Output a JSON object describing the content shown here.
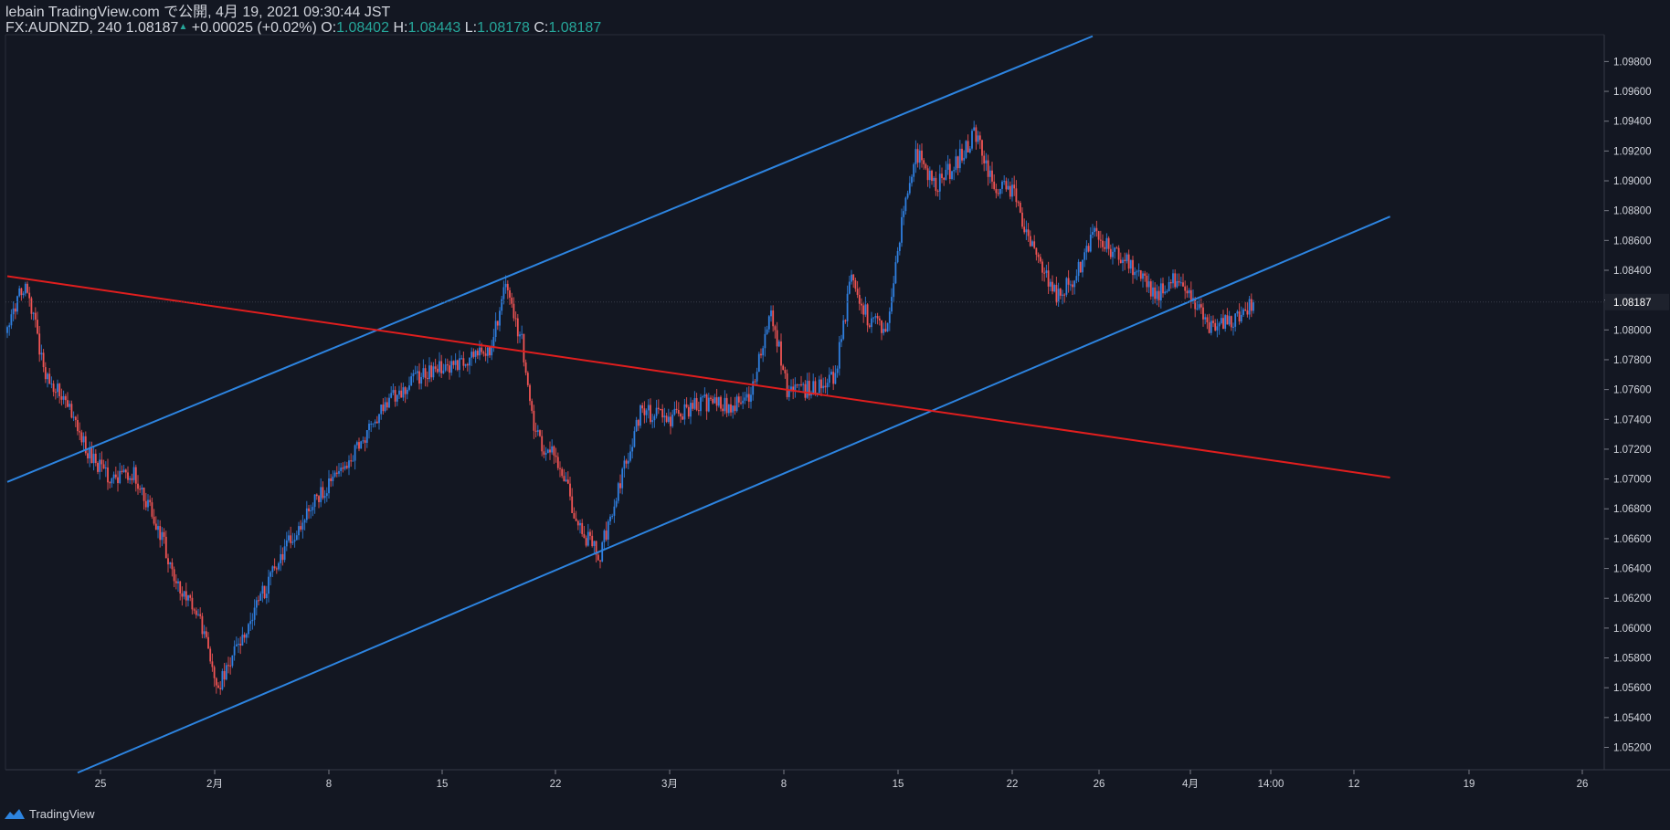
{
  "header": {
    "line1": "lebain TradingView.com で公開, 4月 19, 2021 09:30:44 JST",
    "symbol": "FX:AUDNZD, 240",
    "last": "1.08187",
    "up_arrow": "▲",
    "change": "+0.00025 (+0.02%)",
    "o_label": "O:",
    "o_value": "1.08402",
    "h_label": "H:",
    "h_value": "1.08443",
    "l_label": "L:",
    "l_value": "1.08178",
    "c_label": "C:",
    "c_value": "1.08187"
  },
  "footer": {
    "brand": "TradingView"
  },
  "colors": {
    "background": "#131722",
    "up": "#2f7fe0",
    "down": "#f05454",
    "channel": "#2d84e0",
    "trendline": "#e01e1e",
    "axis_text": "#d1d4dc",
    "price_tag_bg": "#1e222d"
  },
  "chart_data": {
    "type": "candlestick",
    "symbol": "FX:AUDNZD",
    "interval": "240",
    "ylim": [
      1.0505,
      1.0998
    ],
    "y_ticks": [
      "1.09800",
      "1.09600",
      "1.09400",
      "1.09200",
      "1.09000",
      "1.08800",
      "1.08600",
      "1.08400",
      "1.08200",
      "1.08000",
      "1.07800",
      "1.07600",
      "1.07400",
      "1.07200",
      "1.07000",
      "1.06800",
      "1.06600",
      "1.06400",
      "1.06200",
      "1.06000",
      "1.05800",
      "1.05600",
      "1.05400",
      "1.05200"
    ],
    "current_price": "1.08187",
    "x_ticks": [
      "25",
      "2月",
      "8",
      "15",
      "22",
      "3月",
      "8",
      "15",
      "22",
      "26",
      "4月",
      "14:00",
      "12",
      "19",
      "26"
    ],
    "close_path": [
      {
        "bar": 0,
        "close": 1.0803
      },
      {
        "bar": 6,
        "close": 1.0825
      },
      {
        "bar": 10,
        "close": 1.083
      },
      {
        "bar": 18,
        "close": 1.0772
      },
      {
        "bar": 30,
        "close": 1.0748
      },
      {
        "bar": 40,
        "close": 1.0718
      },
      {
        "bar": 52,
        "close": 1.0698
      },
      {
        "bar": 62,
        "close": 1.0705
      },
      {
        "bar": 72,
        "close": 1.0678
      },
      {
        "bar": 85,
        "close": 1.063
      },
      {
        "bar": 95,
        "close": 1.061
      },
      {
        "bar": 105,
        "close": 1.056
      },
      {
        "bar": 115,
        "close": 1.0588
      },
      {
        "bar": 130,
        "close": 1.0632
      },
      {
        "bar": 145,
        "close": 1.067
      },
      {
        "bar": 165,
        "close": 1.0705
      },
      {
        "bar": 175,
        "close": 1.0722
      },
      {
        "bar": 190,
        "close": 1.0755
      },
      {
        "bar": 210,
        "close": 1.0772
      },
      {
        "bar": 230,
        "close": 1.0782
      },
      {
        "bar": 240,
        "close": 1.0786
      },
      {
        "bar": 248,
        "close": 1.0828
      },
      {
        "bar": 256,
        "close": 1.0792
      },
      {
        "bar": 262,
        "close": 1.073
      },
      {
        "bar": 275,
        "close": 1.071
      },
      {
        "bar": 285,
        "close": 1.0665
      },
      {
        "bar": 295,
        "close": 1.065
      },
      {
        "bar": 305,
        "close": 1.0698
      },
      {
        "bar": 315,
        "close": 1.0745
      },
      {
        "bar": 330,
        "close": 1.074
      },
      {
        "bar": 345,
        "close": 1.0752
      },
      {
        "bar": 360,
        "close": 1.0748
      },
      {
        "bar": 370,
        "close": 1.0755
      },
      {
        "bar": 380,
        "close": 1.0815
      },
      {
        "bar": 388,
        "close": 1.076
      },
      {
        "bar": 398,
        "close": 1.076
      },
      {
        "bar": 412,
        "close": 1.077
      },
      {
        "bar": 420,
        "close": 1.0835
      },
      {
        "bar": 428,
        "close": 1.0808
      },
      {
        "bar": 438,
        "close": 1.08
      },
      {
        "bar": 445,
        "close": 1.087
      },
      {
        "bar": 452,
        "close": 1.092
      },
      {
        "bar": 462,
        "close": 1.0896
      },
      {
        "bar": 472,
        "close": 1.0912
      },
      {
        "bar": 482,
        "close": 1.0932
      },
      {
        "bar": 490,
        "close": 1.0897
      },
      {
        "bar": 500,
        "close": 1.0893
      },
      {
        "bar": 512,
        "close": 1.0848
      },
      {
        "bar": 522,
        "close": 1.0822
      },
      {
        "bar": 532,
        "close": 1.0836
      },
      {
        "bar": 540,
        "close": 1.0865
      },
      {
        "bar": 550,
        "close": 1.0852
      },
      {
        "bar": 560,
        "close": 1.0842
      },
      {
        "bar": 570,
        "close": 1.0823
      },
      {
        "bar": 580,
        "close": 1.0832
      },
      {
        "bar": 590,
        "close": 1.0818
      },
      {
        "bar": 600,
        "close": 1.08
      },
      {
        "bar": 610,
        "close": 1.0807
      },
      {
        "bar": 620,
        "close": 1.0818
      }
    ],
    "lines": [
      {
        "name": "channel-upper",
        "color": "#2d84e0",
        "from": {
          "bar": 0,
          "price": 1.0698
        },
        "to": {
          "bar": 540,
          "price": 1.0997
        }
      },
      {
        "name": "channel-lower",
        "color": "#2d84e0",
        "from": {
          "bar": 35,
          "price": 1.0503
        },
        "to": {
          "bar": 688,
          "price": 1.0876
        }
      },
      {
        "name": "red-trendline",
        "color": "#e01e1e",
        "from": {
          "bar": 0,
          "price": 1.0836
        },
        "to": {
          "bar": 688,
          "price": 1.0701
        }
      }
    ]
  }
}
